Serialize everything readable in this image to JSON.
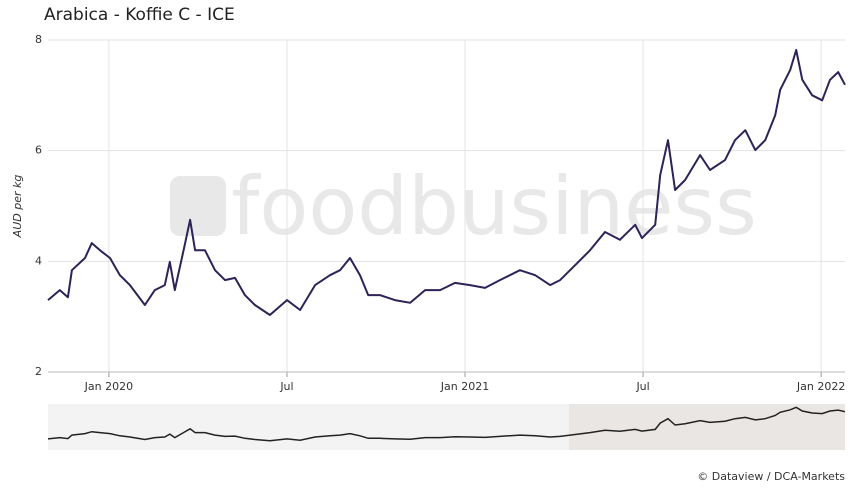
{
  "chart_data": {
    "type": "line",
    "title": "Arabica - Koffie C - ICE",
    "y_label": "AUD per kg",
    "watermark": "foodbusiness",
    "credit": "© Dataview / DCA-Markets",
    "color": "#2e2257",
    "grid": true,
    "x": [
      2019.829,
      2019.862,
      2019.885,
      2019.896,
      2019.933,
      2019.952,
      2019.975,
      2020.003,
      2020.031,
      2020.059,
      2020.101,
      2020.129,
      2020.157,
      2020.171,
      2020.185,
      2020.213,
      2020.228,
      2020.242,
      2020.27,
      2020.298,
      2020.326,
      2020.354,
      2020.382,
      2020.41,
      2020.452,
      2020.5,
      2020.537,
      2020.579,
      2020.621,
      2020.649,
      2020.677,
      2020.705,
      2020.728,
      2020.761,
      2020.803,
      2020.846,
      2020.888,
      2020.93,
      2020.972,
      2021.014,
      2021.056,
      2021.098,
      2021.154,
      2021.197,
      2021.239,
      2021.267,
      2021.309,
      2021.351,
      2021.393,
      2021.435,
      2021.478,
      2021.497,
      2021.534,
      2021.548,
      2021.57,
      2021.59,
      2021.618,
      2021.66,
      2021.688,
      2021.73,
      2021.758,
      2021.787,
      2021.815,
      2021.843,
      2021.871,
      2021.885,
      2021.913,
      2021.93,
      2021.947,
      2021.975,
      2022.003,
      2022.025,
      2022.048,
      2022.067
    ],
    "values": [
      3.3,
      3.48,
      3.35,
      3.84,
      4.06,
      4.33,
      4.2,
      4.06,
      3.75,
      3.57,
      3.21,
      3.48,
      3.57,
      3.99,
      3.48,
      4.3,
      4.75,
      4.2,
      4.2,
      3.84,
      3.66,
      3.7,
      3.39,
      3.21,
      3.03,
      3.3,
      3.12,
      3.57,
      3.75,
      3.84,
      4.06,
      3.75,
      3.39,
      3.39,
      3.3,
      3.25,
      3.48,
      3.48,
      3.61,
      3.57,
      3.52,
      3.66,
      3.84,
      3.75,
      3.57,
      3.66,
      3.93,
      4.2,
      4.53,
      4.39,
      4.66,
      4.42,
      4.66,
      5.56,
      6.19,
      5.29,
      5.47,
      5.92,
      5.65,
      5.83,
      6.19,
      6.37,
      6.01,
      6.19,
      6.64,
      7.1,
      7.46,
      7.82,
      7.28,
      7.0,
      6.91,
      7.28,
      7.42,
      7.19
    ],
    "xlim": [
      2019.829,
      2022.067
    ],
    "xticks": [
      {
        "value": 2020,
        "label": "Jan 2020"
      },
      {
        "value": 2020.5,
        "label": "Jul"
      },
      {
        "value": 2021,
        "label": "Jan 2021"
      },
      {
        "value": 2021.5,
        "label": "Jul"
      },
      {
        "value": 2022,
        "label": "Jan 2022"
      }
    ],
    "ylim": [
      2,
      8
    ],
    "yticks": [
      2,
      4,
      6,
      8
    ]
  }
}
